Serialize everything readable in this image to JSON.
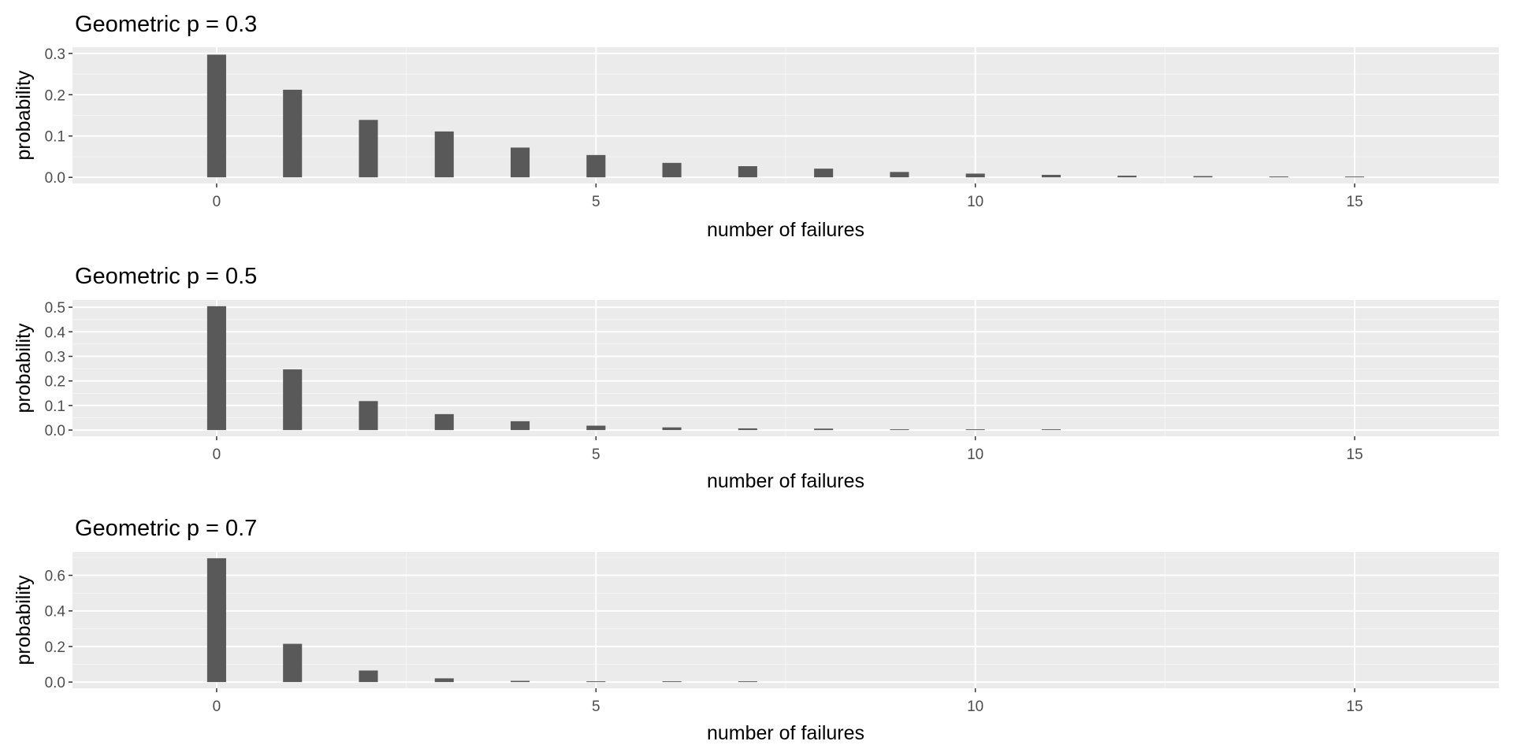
{
  "colors": {
    "panel_background": "#ebebeb",
    "grid_major": "#ffffff",
    "grid_minor": "#f5f5f5",
    "bar_fill": "#595959",
    "tick_mark": "#333333",
    "tick_label": "#4d4d4d",
    "text": "#000000"
  },
  "chart_data": [
    {
      "type": "bar",
      "title": "Geometric p =  0.3",
      "xlabel": "number of failures",
      "ylabel": "probability",
      "xlim": [
        -1.9,
        16.9
      ],
      "ylim": [
        -0.0149,
        0.3149
      ],
      "x_breaks": [
        0,
        5,
        10,
        15
      ],
      "x_tick_labels": [
        "0",
        "5",
        "10",
        "15"
      ],
      "y_breaks": [
        0,
        0.1,
        0.2,
        0.3
      ],
      "y_tick_labels": [
        "0.0",
        "0.1",
        "0.2",
        "0.3"
      ],
      "bar_width": 0.25,
      "grid": true,
      "x": [
        0,
        1,
        2,
        3,
        4,
        5,
        6,
        7,
        8,
        9,
        10,
        11,
        12,
        13,
        14,
        15
      ],
      "values": [
        0.297,
        0.212,
        0.139,
        0.111,
        0.072,
        0.054,
        0.035,
        0.027,
        0.021,
        0.013,
        0.009,
        0.006,
        0.004,
        0.003,
        0.002,
        0.001
      ]
    },
    {
      "type": "bar",
      "title": "Geometric p =  0.5",
      "xlabel": "number of failures",
      "ylabel": "probability",
      "xlim": [
        -1.9,
        16.9
      ],
      "ylim": [
        -0.0252,
        0.5292
      ],
      "x_breaks": [
        0,
        5,
        10,
        15
      ],
      "x_tick_labels": [
        "0",
        "5",
        "10",
        "15"
      ],
      "y_breaks": [
        0,
        0.1,
        0.2,
        0.3,
        0.4,
        0.5
      ],
      "y_tick_labels": [
        "0.0",
        "0.1",
        "0.2",
        "0.3",
        "0.4",
        "0.5"
      ],
      "bar_width": 0.25,
      "grid": true,
      "x": [
        0,
        1,
        2,
        3,
        4,
        5,
        6,
        7,
        8,
        9,
        10,
        11
      ],
      "values": [
        0.504,
        0.247,
        0.118,
        0.065,
        0.036,
        0.018,
        0.011,
        0.007,
        0.006,
        0.003,
        0.002,
        0.002
      ]
    },
    {
      "type": "bar",
      "title": "Geometric p =  0.7",
      "xlabel": "number of failures",
      "ylabel": "probability",
      "xlim": [
        -1.9,
        16.9
      ],
      "ylim": [
        -0.0348,
        0.7308
      ],
      "x_breaks": [
        0,
        5,
        10,
        15
      ],
      "x_tick_labels": [
        "0",
        "5",
        "10",
        "15"
      ],
      "y_breaks": [
        0,
        0.2,
        0.4,
        0.6
      ],
      "y_tick_labels": [
        "0.0",
        "0.2",
        "0.4",
        "0.6"
      ],
      "bar_width": 0.25,
      "grid": true,
      "x": [
        0,
        1,
        2,
        3,
        4,
        5,
        6,
        7
      ],
      "values": [
        0.696,
        0.215,
        0.065,
        0.021,
        0.007,
        0.003,
        0.002,
        0.001
      ]
    }
  ]
}
